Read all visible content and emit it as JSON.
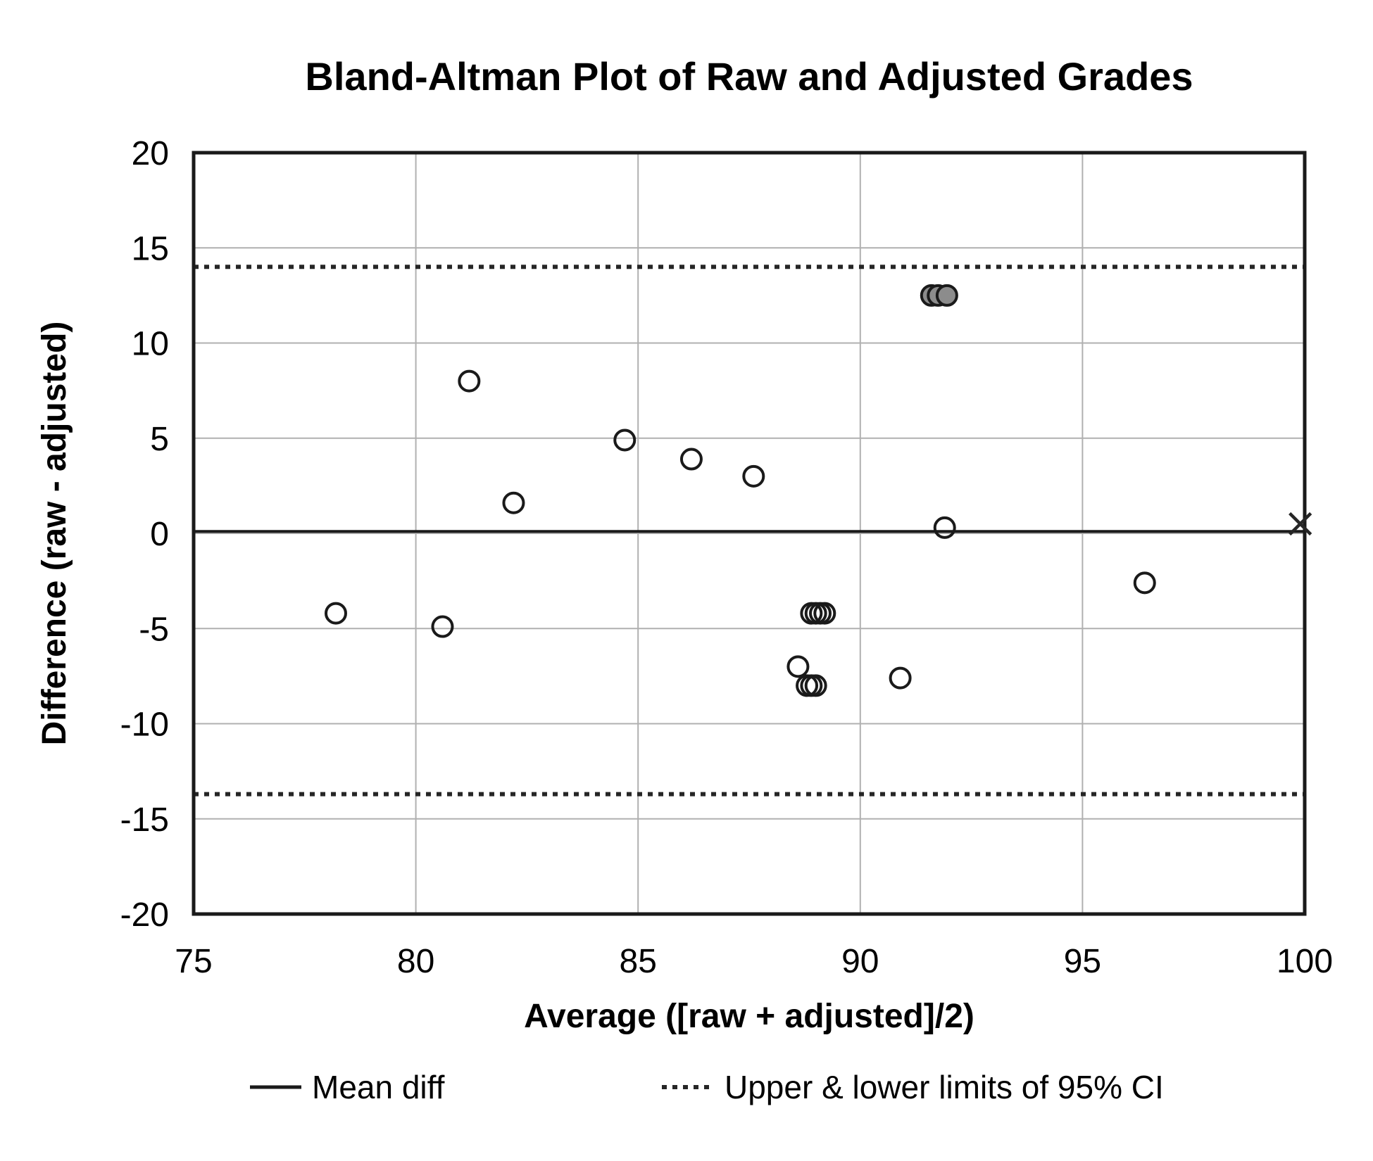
{
  "page": {
    "background": "#ffffff"
  },
  "chart_data": {
    "type": "scatter",
    "title": "Bland-Altman Plot of Raw and Adjusted Grades",
    "xlabel": "Average ([raw + adjusted]/2)",
    "ylabel": "Difference (raw - adjusted)",
    "xlim": [
      75,
      100
    ],
    "ylim": [
      -20,
      20
    ],
    "x_ticks": [
      75,
      80,
      85,
      90,
      95,
      100
    ],
    "y_ticks": [
      -20,
      -15,
      -10,
      -5,
      0,
      5,
      10,
      15,
      20
    ],
    "grid": true,
    "legend_position": "bottom",
    "series": [
      {
        "marker": "open-circle",
        "stroke": "#1a1a1a",
        "fill": "none",
        "points": [
          [
            78.2,
            -4.2
          ],
          [
            80.6,
            -4.9
          ],
          [
            81.2,
            8.0
          ],
          [
            82.2,
            1.6
          ],
          [
            84.7,
            4.9
          ],
          [
            86.2,
            3.9
          ],
          [
            87.6,
            3.0
          ],
          [
            88.9,
            -4.2
          ],
          [
            89.0,
            -4.2
          ],
          [
            89.1,
            -4.2
          ],
          [
            89.2,
            -4.2
          ],
          [
            88.6,
            -7.0
          ],
          [
            88.8,
            -8.0
          ],
          [
            88.9,
            -8.0
          ],
          [
            89.0,
            -8.0
          ],
          [
            90.9,
            -7.6
          ],
          [
            91.9,
            0.3
          ],
          [
            96.4,
            -2.6
          ]
        ]
      },
      {
        "marker": "filled-circle",
        "stroke": "#1a1a1a",
        "fill": "#8c8c8c",
        "points": [
          [
            91.6,
            12.5
          ],
          [
            91.75,
            12.5
          ],
          [
            91.95,
            12.5
          ]
        ]
      },
      {
        "marker": "x",
        "stroke": "#262626",
        "fill": "none",
        "points": [
          [
            99.9,
            0.5
          ]
        ]
      }
    ],
    "reference_lines": [
      {
        "label": "Mean diff",
        "value": 0.1,
        "style": "solid"
      },
      {
        "label": "Upper limit of 95% CI",
        "value": 14.0,
        "style": "dotted"
      },
      {
        "label": "Lower limit of 95% CI",
        "value": -13.7,
        "style": "dotted"
      }
    ],
    "legend": [
      {
        "label": "Mean diff",
        "style": "solid"
      },
      {
        "label": "Upper & lower limits of 95% CI",
        "style": "dotted"
      }
    ]
  },
  "colors": {
    "background": "#ffffff",
    "text": "#000000",
    "axis_border": "#1a1a1a",
    "gridline": "#b0b0b0",
    "mean_line": "#1a1a1a",
    "ci_line": "#262626",
    "marker_stroke": "#1a1a1a",
    "filled_marker_fill": "#8c8c8c"
  }
}
